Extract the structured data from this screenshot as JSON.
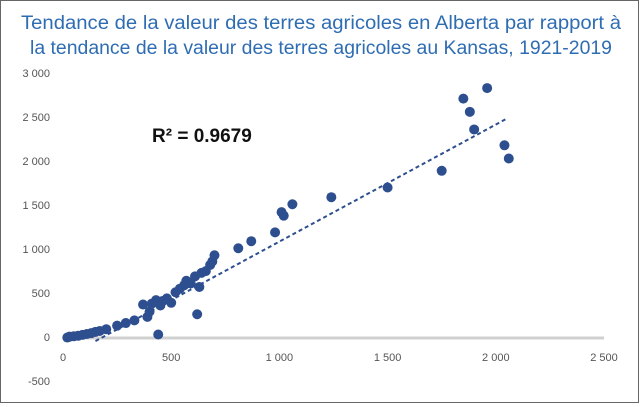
{
  "chart_data": {
    "type": "scatter",
    "title": [
      "Tendance de la valeur des terres agricoles en Alberta par rapport à",
      "la tendance de la valeur des terres agricoles au Kansas, 1921-2019"
    ],
    "annotation": "R² = 0.9679",
    "color": "#2e4f8f",
    "title_color": "#2f6db3",
    "grid": false,
    "x": [
      20,
      30,
      50,
      70,
      90,
      110,
      130,
      150,
      170,
      200,
      250,
      290,
      330,
      370,
      390,
      400,
      410,
      430,
      440,
      450,
      460,
      480,
      500,
      520,
      540,
      560,
      570,
      590,
      610,
      620,
      630,
      640,
      660,
      680,
      690,
      700,
      810,
      870,
      980,
      1010,
      1020,
      1060,
      1240,
      1500,
      1750,
      1850,
      1880,
      1900,
      1960,
      2040,
      2060
    ],
    "values": [
      5,
      15,
      20,
      25,
      35,
      45,
      55,
      70,
      80,
      100,
      140,
      170,
      200,
      380,
      240,
      300,
      390,
      430,
      40,
      370,
      420,
      450,
      400,
      520,
      560,
      600,
      650,
      620,
      700,
      270,
      580,
      740,
      760,
      830,
      870,
      940,
      1020,
      1100,
      1200,
      1430,
      1390,
      1520,
      1600,
      1710,
      1900,
      2720,
      2570,
      2370,
      2840,
      2190,
      2040
    ],
    "trendline": {
      "x": [
        150,
        2050
      ],
      "y": [
        -35,
        2492
      ]
    },
    "xlim": [
      0,
      2500
    ],
    "xticks": [
      0,
      500,
      {
        "value": 1000,
        "label": "1 000"
      },
      {
        "value": 1500,
        "label": "1 500"
      },
      {
        "value": 2000,
        "label": "2 000"
      },
      {
        "value": 2500,
        "label": "2 500"
      }
    ],
    "ylim": [
      -500,
      3000
    ],
    "yticks": [
      -500,
      0,
      500,
      {
        "value": 1000,
        "label": "1 000"
      },
      {
        "value": 1500,
        "label": "1 500"
      },
      {
        "value": 2000,
        "label": "2 000"
      },
      {
        "value": 2500,
        "label": "2 500"
      },
      {
        "value": 3000,
        "label": "3 000"
      }
    ]
  }
}
